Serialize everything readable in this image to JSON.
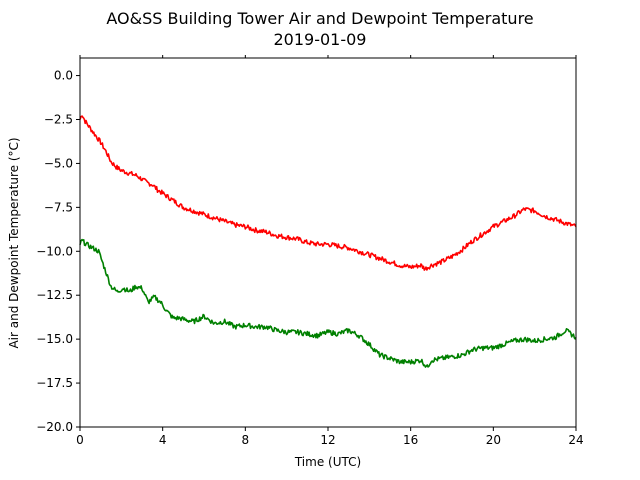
{
  "chart_data": {
    "type": "line",
    "title": "AO&SS Building Tower Air and Dewpoint Temperature",
    "subtitle": "2019-01-09",
    "xlabel": "Time (UTC)",
    "ylabel": "Air and Dewpoint Temperature (°C)",
    "xlim": [
      0,
      24
    ],
    "ylim": [
      -20,
      1
    ],
    "xticks": [
      0,
      4,
      8,
      12,
      16,
      20,
      24
    ],
    "xtick_labels": [
      "0",
      "4",
      "8",
      "12",
      "16",
      "20",
      "24"
    ],
    "yticks": [
      0,
      -2.5,
      -5,
      -7.5,
      -10,
      -12.5,
      -15,
      -17.5,
      -20
    ],
    "ytick_labels": [
      "0.0",
      "−2.5",
      "−5.0",
      "−7.5",
      "−10.0",
      "−12.5",
      "−15.0",
      "−17.5",
      "−20.0"
    ],
    "grid": false,
    "series": [
      {
        "color": "#ff0000",
        "x": [
          0,
          0.1,
          0.25,
          0.5,
          0.75,
          1.0,
          1.25,
          1.5,
          1.75,
          2.0,
          2.25,
          2.5,
          2.75,
          3.0,
          3.25,
          3.5,
          3.75,
          4.0,
          4.25,
          4.5,
          4.75,
          5.0,
          5.5,
          6.0,
          6.5,
          7.0,
          7.5,
          8.0,
          8.5,
          9.0,
          9.5,
          10.0,
          10.5,
          11.0,
          11.5,
          12.0,
          12.5,
          13.0,
          13.5,
          14.0,
          14.5,
          15.0,
          15.5,
          16.0,
          16.5,
          16.7,
          17.0,
          17.5,
          18.0,
          18.5,
          19.0,
          19.5,
          20.0,
          20.5,
          21.0,
          21.5,
          22.0,
          22.5,
          23.0,
          23.5,
          24.0
        ],
        "y": [
          -2.5,
          -2.2,
          -2.6,
          -3.0,
          -3.4,
          -3.8,
          -4.3,
          -4.9,
          -5.2,
          -5.4,
          -5.5,
          -5.6,
          -5.7,
          -5.9,
          -6.1,
          -6.2,
          -6.5,
          -6.7,
          -6.9,
          -7.1,
          -7.3,
          -7.5,
          -7.7,
          -7.9,
          -8.1,
          -8.3,
          -8.5,
          -8.6,
          -8.8,
          -8.9,
          -9.1,
          -9.2,
          -9.3,
          -9.5,
          -9.6,
          -9.6,
          -9.7,
          -9.8,
          -10.0,
          -10.2,
          -10.4,
          -10.6,
          -10.8,
          -10.9,
          -10.8,
          -11.0,
          -10.8,
          -10.6,
          -10.3,
          -9.9,
          -9.4,
          -9.0,
          -8.6,
          -8.3,
          -8.0,
          -7.6,
          -7.7,
          -8.0,
          -8.2,
          -8.4,
          -8.6
        ]
      },
      {
        "color": "#008000",
        "x": [
          0,
          0.1,
          0.3,
          0.6,
          0.9,
          1.2,
          1.5,
          1.8,
          2.1,
          2.4,
          2.7,
          3.0,
          3.3,
          3.6,
          3.9,
          4.2,
          4.5,
          4.8,
          5.1,
          5.5,
          6.0,
          6.5,
          7.0,
          7.5,
          8.0,
          8.5,
          9.0,
          9.5,
          10.0,
          10.5,
          11.0,
          11.5,
          12.0,
          12.5,
          13.0,
          13.5,
          14.0,
          14.5,
          15.0,
          15.5,
          16.0,
          16.5,
          16.8,
          17.0,
          17.5,
          18.0,
          18.5,
          19.0,
          19.5,
          20.0,
          20.5,
          21.0,
          21.5,
          22.0,
          22.5,
          23.0,
          23.5,
          24.0
        ],
        "y": [
          -9.6,
          -9.4,
          -9.6,
          -9.8,
          -10.0,
          -11.0,
          -12.0,
          -12.3,
          -12.1,
          -12.3,
          -12.0,
          -12.1,
          -12.9,
          -12.6,
          -12.9,
          -13.4,
          -13.8,
          -13.8,
          -13.9,
          -14.0,
          -13.7,
          -14.1,
          -14.0,
          -14.3,
          -14.2,
          -14.3,
          -14.3,
          -14.5,
          -14.6,
          -14.6,
          -14.7,
          -14.8,
          -14.6,
          -14.7,
          -14.5,
          -14.8,
          -15.3,
          -15.9,
          -16.1,
          -16.3,
          -16.3,
          -16.2,
          -16.6,
          -16.2,
          -16.1,
          -16.0,
          -15.9,
          -15.6,
          -15.5,
          -15.5,
          -15.3,
          -15.1,
          -15.0,
          -15.1,
          -15.0,
          -14.9,
          -14.5,
          -14.9
        ]
      }
    ]
  }
}
